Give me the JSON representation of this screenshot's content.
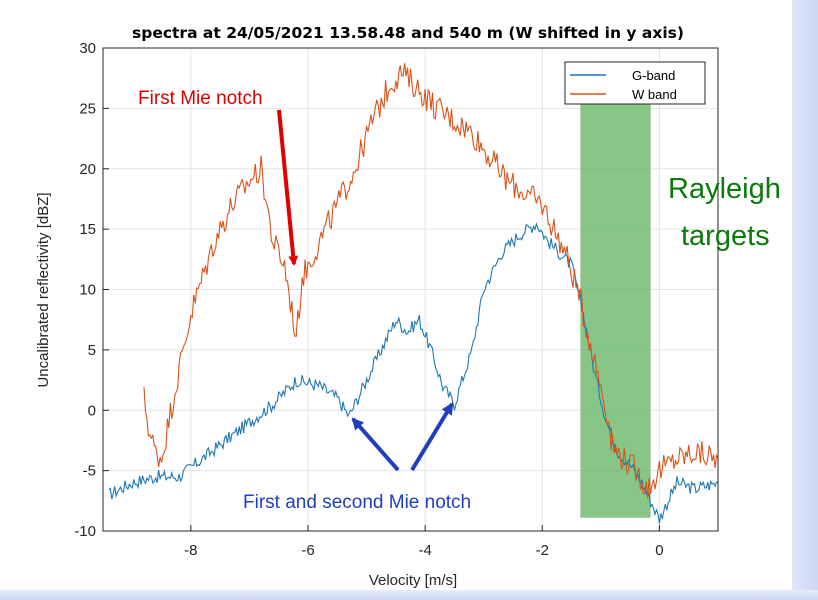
{
  "chart_data": {
    "type": "line",
    "title": "spectra at 24/05/2021 13.58.48 and 540 m (W shifted in y axis)",
    "xlabel": "Velocity [m/s]",
    "ylabel": "Uncalibrated reflectivity [dBZ]",
    "xlim": [
      -9.5,
      1.0
    ],
    "ylim": [
      -10,
      30
    ],
    "x_ticks": [
      -8,
      -6,
      -4,
      -2,
      0
    ],
    "y_ticks": [
      -10,
      -5,
      0,
      5,
      10,
      15,
      20,
      25,
      30
    ],
    "legend_position": "top-right",
    "colors": {
      "g_band": "#1f77b4",
      "w_band": "#d95319",
      "shade": "#5fb35f"
    },
    "series": [
      {
        "name": "G-band",
        "x": [
          -9.4,
          -9.0,
          -8.6,
          -8.2,
          -7.8,
          -7.4,
          -7.0,
          -6.6,
          -6.2,
          -5.8,
          -5.5,
          -5.3,
          -5.0,
          -4.7,
          -4.5,
          -4.3,
          -4.1,
          -3.9,
          -3.7,
          -3.5,
          -3.2,
          -3.0,
          -2.7,
          -2.4,
          -2.1,
          -1.9,
          -1.7,
          -1.5,
          -1.3,
          -1.1,
          -0.9,
          -0.7,
          -0.5,
          -0.3,
          -0.2,
          -0.1,
          0.0,
          0.3,
          0.6,
          1.0
        ],
        "y": [
          -7,
          -6,
          -5.5,
          -5.5,
          -4,
          -2.5,
          -1,
          0.5,
          2.5,
          2,
          1,
          -0.5,
          2.5,
          5.5,
          7.5,
          6.5,
          7.5,
          5,
          2,
          0.5,
          5,
          10,
          13,
          14.5,
          15.5,
          14,
          13,
          12,
          8,
          3,
          -1,
          -3.5,
          -4.5,
          -6,
          -7,
          -8,
          -9,
          -6,
          -6.5,
          -6
        ]
      },
      {
        "name": "W band",
        "x": [
          -8.8,
          -8.7,
          -8.6,
          -8.5,
          -8.3,
          -8.0,
          -7.6,
          -7.3,
          -7.0,
          -6.8,
          -6.6,
          -6.4,
          -6.3,
          -6.2,
          -6.1,
          -6.0,
          -5.8,
          -5.5,
          -5.2,
          -4.9,
          -4.6,
          -4.4,
          -4.2,
          -4.0,
          -3.8,
          -3.5,
          -3.2,
          -2.9,
          -2.6,
          -2.3,
          -2.0,
          -1.8,
          -1.6,
          -1.4,
          -1.2,
          -1.0,
          -0.9,
          -0.8,
          -0.6,
          -0.4,
          -0.2,
          0.0,
          0.3,
          0.6,
          1.0
        ],
        "y": [
          1,
          -2,
          -3.5,
          -4,
          1,
          8,
          14,
          17,
          19,
          20,
          14,
          12,
          9,
          6,
          11,
          12,
          14,
          17,
          20,
          24,
          27,
          28,
          27,
          26,
          25,
          24,
          23,
          21,
          19,
          18,
          17,
          15,
          13,
          10,
          6,
          2,
          0,
          -3,
          -4,
          -5,
          -6.5,
          -5,
          -4,
          -3.5,
          -4
        ]
      }
    ],
    "annotations": {
      "first_mie_notch": "First Mie notch",
      "first_second_mie_notch": "First and second Mie notch",
      "rayleigh_line1": "Rayleigh",
      "rayleigh_line2": "targets"
    }
  }
}
